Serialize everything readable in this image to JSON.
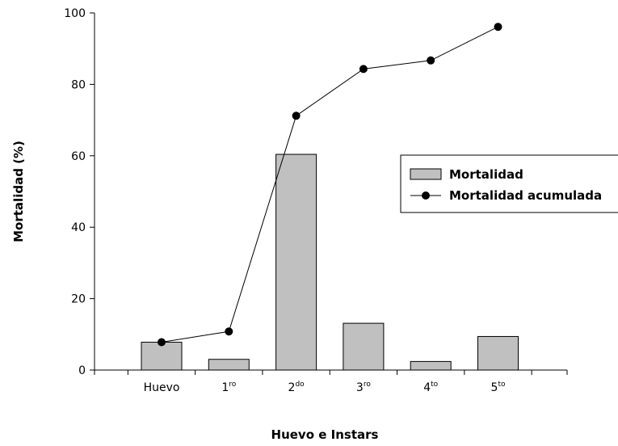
{
  "chart_data": {
    "type": "bar",
    "categories": [
      {
        "base": "Huevo",
        "sup": ""
      },
      {
        "base": "1",
        "sup": "ro"
      },
      {
        "base": "2",
        "sup": "do"
      },
      {
        "base": "3",
        "sup": "ro"
      },
      {
        "base": "4",
        "sup": "to"
      },
      {
        "base": "5",
        "sup": "to"
      }
    ],
    "series": [
      {
        "name": "Mortalidad",
        "type": "bar",
        "color": "#c0c0c0",
        "values": [
          7.8,
          3.0,
          60.4,
          13.1,
          2.4,
          9.4
        ]
      },
      {
        "name": "Mortalidad acumulada",
        "type": "line",
        "color": "#000000",
        "values": [
          7.8,
          10.8,
          71.2,
          84.3,
          86.7,
          96.1
        ]
      }
    ],
    "xlabel": "Huevo e Instars",
    "ylabel": "Mortalidad (%)",
    "ylim": [
      0,
      100
    ],
    "yticks": [
      "0",
      "20",
      "40",
      "60",
      "80",
      "100"
    ],
    "legend_position": "right"
  }
}
